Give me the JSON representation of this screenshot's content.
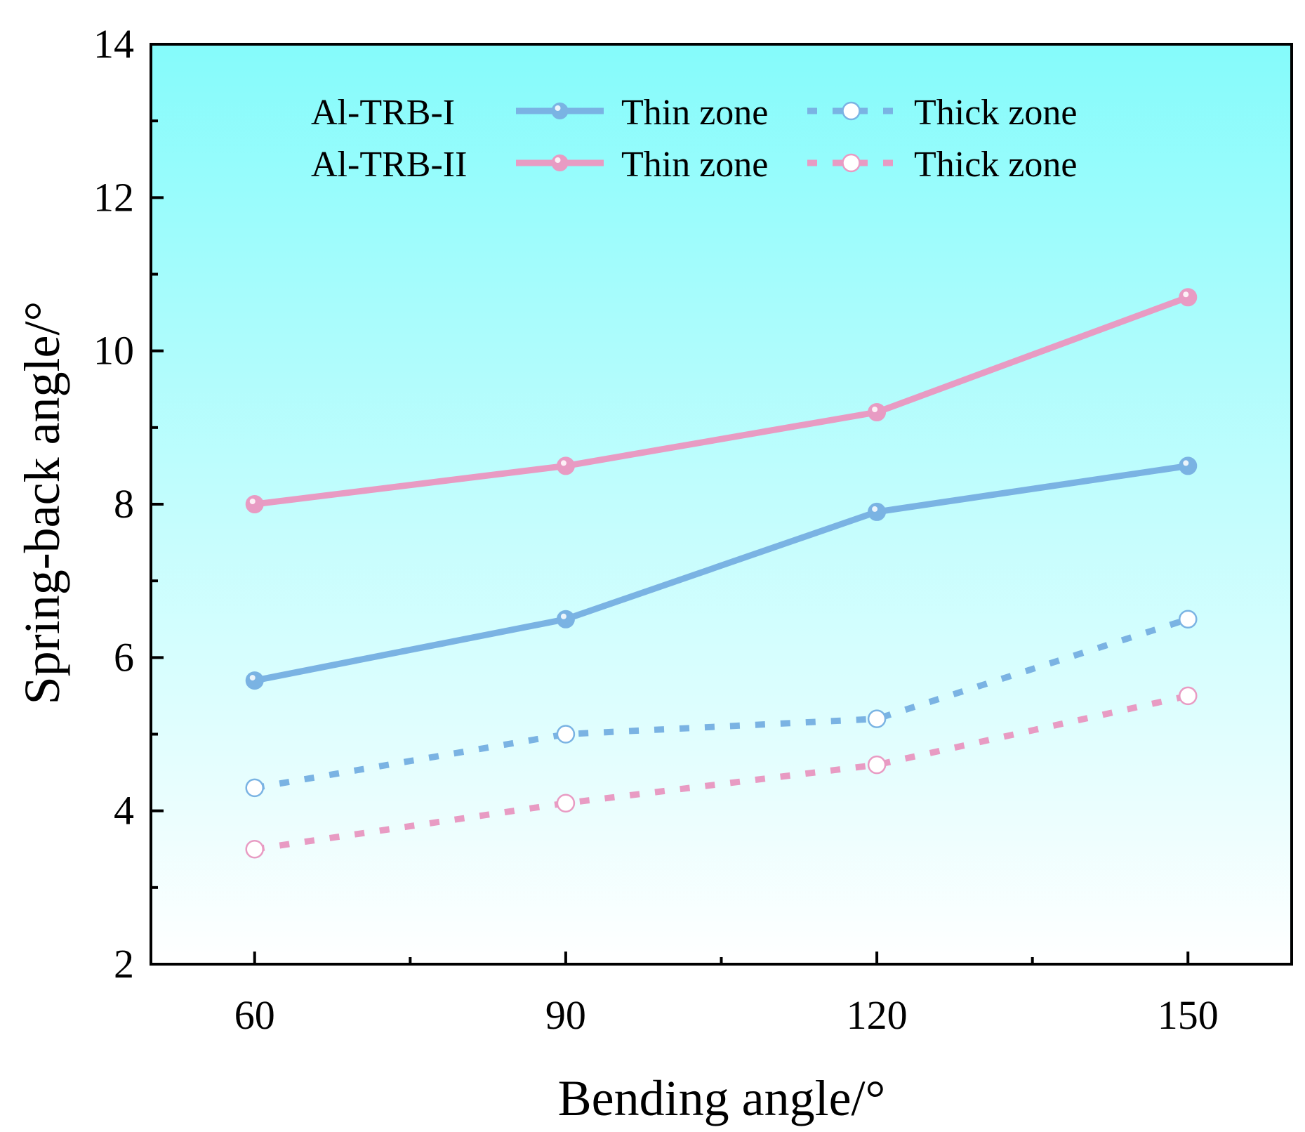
{
  "chart_data": {
    "type": "line",
    "xlabel": "Bending angle/°",
    "ylabel": "Spring-back angle/°",
    "x": [
      60,
      90,
      120,
      150
    ],
    "xlim": [
      50,
      160
    ],
    "ylim": [
      2,
      14
    ],
    "x_ticks": [
      60,
      90,
      120,
      150
    ],
    "y_ticks": [
      2,
      4,
      6,
      8,
      10,
      12,
      14
    ],
    "grid": false,
    "legend_position": "top",
    "legend": {
      "groups": [
        {
          "label": "Al-TRB-I",
          "thin": "Thin zone",
          "thick": "Thick zone"
        },
        {
          "label": "Al-TRB-II",
          "thin": "Thin zone",
          "thick": "Thick zone"
        }
      ]
    },
    "series": [
      {
        "name": "Al-TRB-I Thin zone",
        "color": "#7ab3e3",
        "style": "solid",
        "marker": "filled",
        "values": [
          5.7,
          6.5,
          7.9,
          8.5
        ]
      },
      {
        "name": "Al-TRB-I Thick zone",
        "color": "#7ab3e3",
        "style": "dashed",
        "marker": "hollow",
        "values": [
          4.3,
          5.0,
          5.2,
          6.5
        ]
      },
      {
        "name": "Al-TRB-II Thin zone",
        "color": "#e89bc3",
        "style": "solid",
        "marker": "filled",
        "values": [
          8.0,
          8.5,
          9.2,
          10.7
        ]
      },
      {
        "name": "Al-TRB-II Thick zone",
        "color": "#e89bc3",
        "style": "dashed",
        "marker": "hollow",
        "values": [
          3.5,
          4.1,
          4.6,
          5.5
        ]
      }
    ],
    "background_gradient": [
      "#85fbfb",
      "#ffffff"
    ]
  }
}
